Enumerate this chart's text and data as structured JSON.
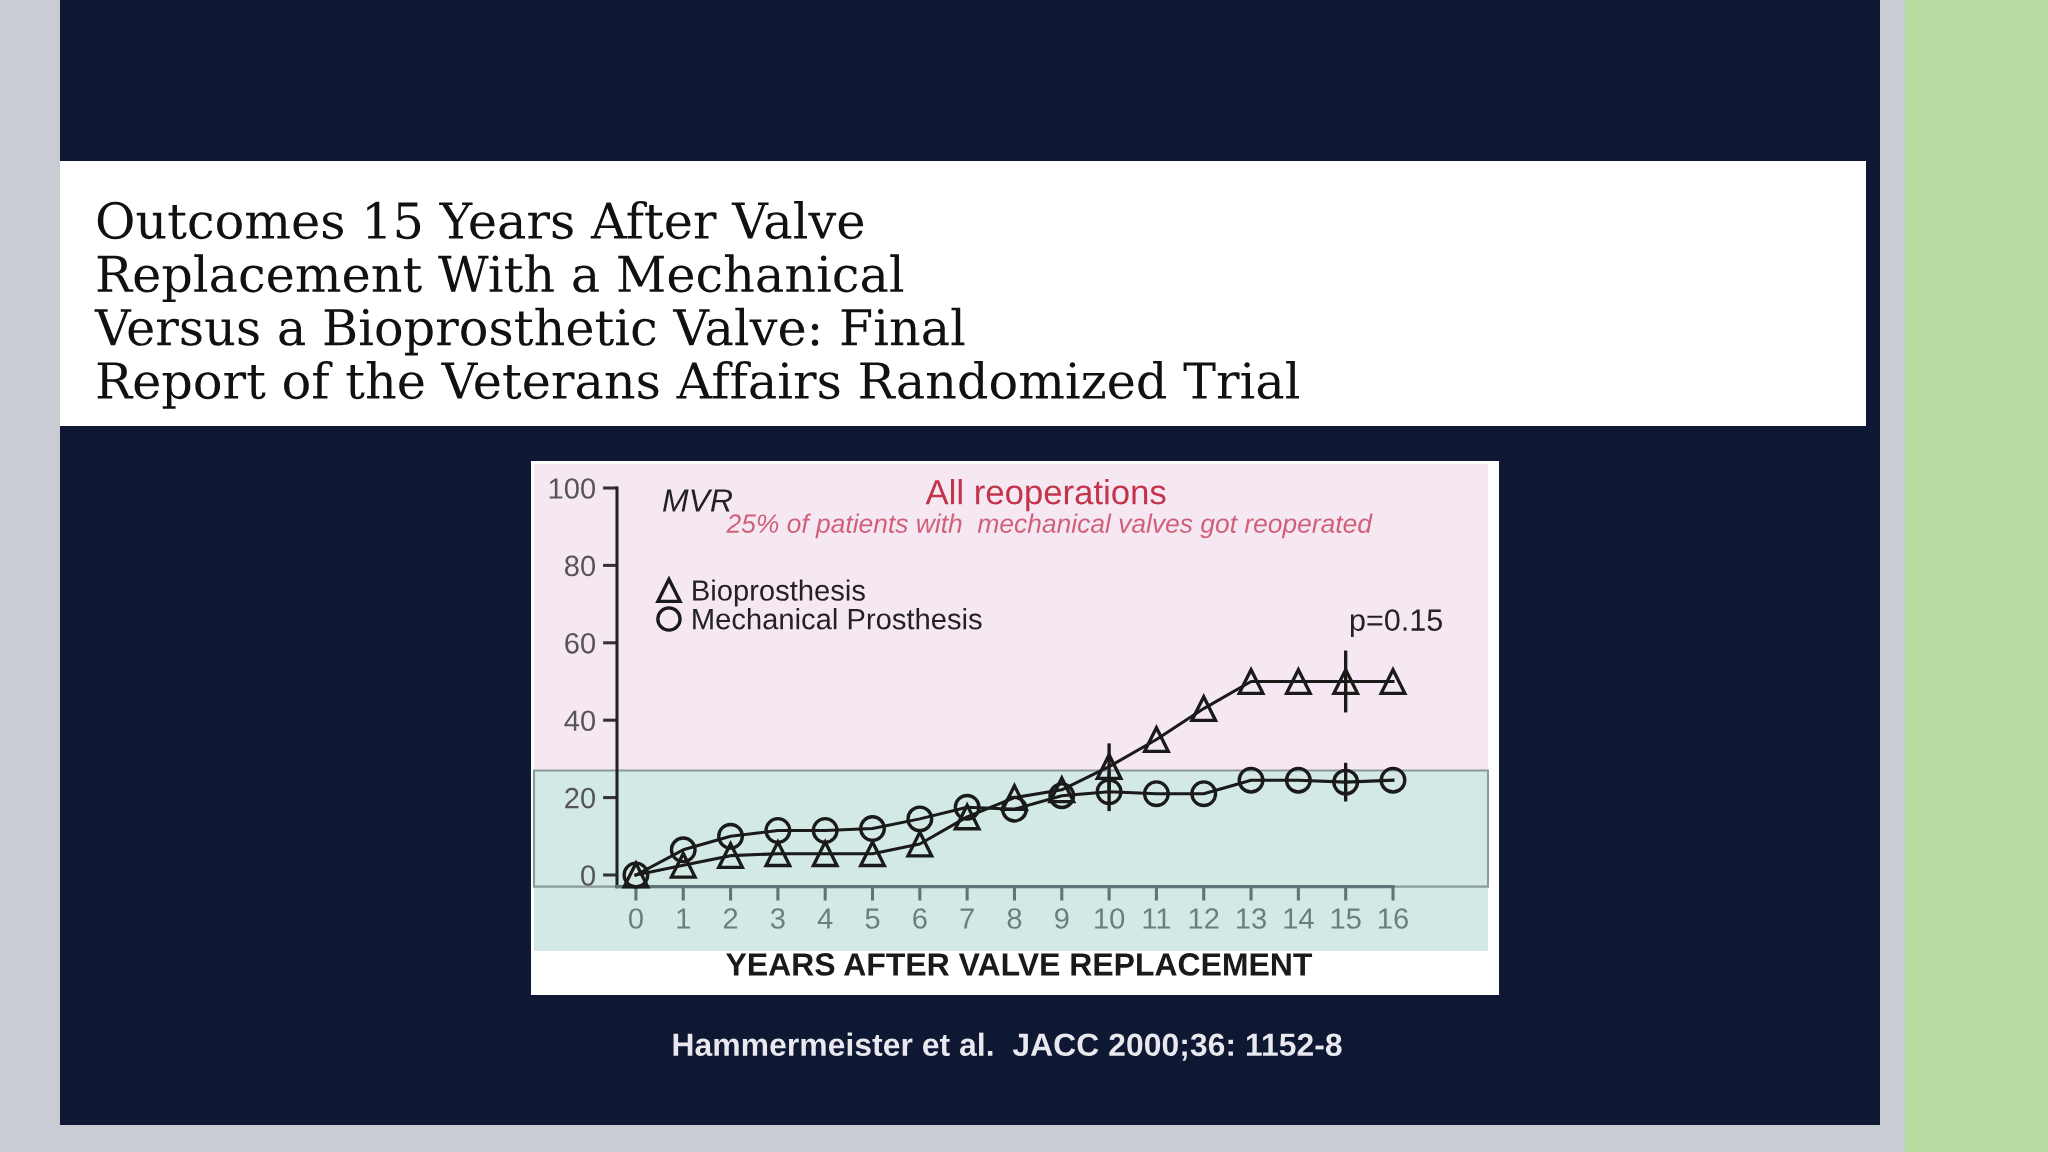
{
  "chart_data": {
    "type": "line",
    "title": "Outcomes 15 Years After Valve\nReplacement With a Mechanical\nVersus a Bioprosthetic Valve: Final\nReport of the Veterans Affairs Randomized Trial",
    "subtitle": "All reoperations",
    "xlabel": "YEARS AFTER VALVE REPLACEMENT",
    "annotations": [
      "MVR",
      "25% of patients with  mechanical valves got reoperated",
      "p=0.15",
      "Hammermeister et al.  JACC 2000;36: 1152-8"
    ],
    "x": [
      0,
      1,
      2,
      3,
      4,
      5,
      6,
      7,
      8,
      9,
      10,
      11,
      12,
      13,
      14,
      15,
      16
    ],
    "series": [
      {
        "name": "Bioprosthesis",
        "color": "#1a1a1a",
        "marker": "triangle",
        "values": [
          0,
          2.5,
          5,
          5.5,
          5.5,
          5.5,
          8,
          15,
          20,
          22,
          28,
          35,
          43,
          50,
          50,
          50,
          50
        ],
        "errors": [
          null,
          null,
          null,
          null,
          null,
          null,
          null,
          null,
          null,
          null,
          6,
          null,
          null,
          null,
          null,
          8,
          null
        ]
      },
      {
        "name": "Mechanical Prosthesis",
        "color": "#1a1a1a",
        "marker": "circle",
        "values": [
          0,
          6.5,
          10,
          11.5,
          11.5,
          12,
          14.5,
          17.5,
          17,
          20.5,
          21.5,
          21,
          21,
          24.5,
          24.5,
          24,
          24.5
        ],
        "errors": [
          null,
          null,
          null,
          null,
          null,
          null,
          null,
          null,
          null,
          null,
          5,
          null,
          null,
          null,
          null,
          5,
          null
        ]
      }
    ],
    "xlim": [
      -0.4,
      16
    ],
    "xticks": [
      0,
      1,
      2,
      3,
      4,
      5,
      6,
      7,
      8,
      9,
      10,
      11,
      12,
      13,
      14,
      15,
      16
    ],
    "ylim": [
      -3,
      100
    ],
    "yticks": [
      0,
      20,
      40,
      60,
      80,
      100
    ],
    "bands": [
      {
        "axis": "y",
        "from": -3,
        "to": 27,
        "color": "#d3e9e6"
      }
    ],
    "legend": "top left",
    "line_style": "solid"
  }
}
